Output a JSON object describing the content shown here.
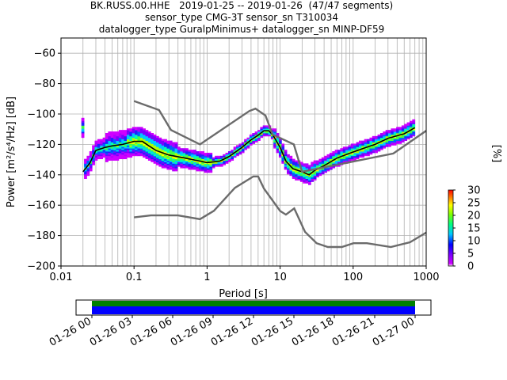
{
  "title": {
    "line1": "BK.RUSS.00.HHE   2019-01-25 -- 2019-01-26  (47/47 segments)",
    "line2": "sensor_type CMG-3T sensor_sn T310034",
    "line3": "datalogger_type GuralpMinimus+ datalogger_sn MINP-DF59"
  },
  "chart_data": {
    "type": "heatmap",
    "xlabel": "Period [s]",
    "ylabel": "Power [m²/s⁴/Hz] [dB]",
    "xscale": "log",
    "xlim": [
      0.01,
      1000
    ],
    "ylim": [
      -200,
      -50
    ],
    "xticks": [
      {
        "v": 0.01,
        "label": "0.01"
      },
      {
        "v": 0.1,
        "label": "0.1"
      },
      {
        "v": 1,
        "label": "1"
      },
      {
        "v": 10,
        "label": "10"
      },
      {
        "v": 100,
        "label": "100"
      },
      {
        "v": 1000,
        "label": "1000"
      }
    ],
    "yticks": [
      {
        "v": -60,
        "label": "−60"
      },
      {
        "v": -80,
        "label": "−80"
      },
      {
        "v": -100,
        "label": "−100"
      },
      {
        "v": -120,
        "label": "−120"
      },
      {
        "v": -140,
        "label": "−140"
      },
      {
        "v": -160,
        "label": "−160"
      },
      {
        "v": -180,
        "label": "−180"
      },
      {
        "v": -200,
        "label": "−200"
      }
    ],
    "grid": true,
    "colorbar": {
      "label": "[%]",
      "ticks": [
        {
          "v": 0,
          "label": "0"
        },
        {
          "v": 5,
          "label": "5"
        },
        {
          "v": 10,
          "label": "10"
        },
        {
          "v": 15,
          "label": "15"
        },
        {
          "v": 20,
          "label": "20"
        },
        {
          "v": 25,
          "label": "25"
        },
        {
          "v": 30,
          "label": "30"
        }
      ],
      "range": [
        0,
        30
      ]
    },
    "series": [
      {
        "kind": "mode",
        "points": [
          [
            0.02,
            -138
          ],
          [
            0.025,
            -132
          ],
          [
            0.03,
            -124
          ],
          [
            0.04,
            -122
          ],
          [
            0.05,
            -121
          ],
          [
            0.07,
            -120
          ],
          [
            0.1,
            -118
          ],
          [
            0.13,
            -118
          ],
          [
            0.16,
            -121
          ],
          [
            0.2,
            -124
          ],
          [
            0.3,
            -127
          ],
          [
            0.5,
            -129
          ],
          [
            0.8,
            -131
          ],
          [
            1.0,
            -132
          ],
          [
            1.5,
            -131
          ],
          [
            2,
            -128
          ],
          [
            3,
            -122
          ],
          [
            4,
            -117
          ],
          [
            5,
            -114
          ],
          [
            6,
            -111
          ],
          [
            7,
            -111
          ],
          [
            8,
            -114
          ],
          [
            10,
            -122
          ],
          [
            12,
            -131
          ],
          [
            15,
            -136
          ],
          [
            20,
            -138
          ],
          [
            25,
            -140
          ],
          [
            30,
            -137
          ],
          [
            40,
            -134
          ],
          [
            60,
            -129
          ],
          [
            100,
            -125
          ],
          [
            150,
            -122
          ],
          [
            200,
            -120
          ],
          [
            300,
            -116
          ],
          [
            500,
            -113
          ],
          [
            700,
            -109
          ]
        ]
      },
      {
        "kind": "new_high_noise_model",
        "points": [
          [
            0.1,
            -91.5
          ],
          [
            0.22,
            -97.4
          ],
          [
            0.32,
            -110.5
          ],
          [
            0.8,
            -120
          ],
          [
            3.8,
            -98
          ],
          [
            4.6,
            -96.5
          ],
          [
            6.3,
            -101
          ],
          [
            7.9,
            -113.5
          ],
          [
            15.4,
            -120
          ],
          [
            20,
            -138
          ],
          [
            354.8,
            -126
          ],
          [
            1000,
            -111
          ]
        ]
      },
      {
        "kind": "new_low_noise_model",
        "points": [
          [
            0.1,
            -168
          ],
          [
            0.17,
            -166.7
          ],
          [
            0.4,
            -166.7
          ],
          [
            0.8,
            -169.2
          ],
          [
            1.24,
            -163.7
          ],
          [
            2.4,
            -148.6
          ],
          [
            4.3,
            -141.1
          ],
          [
            5,
            -141.1
          ],
          [
            6,
            -149
          ],
          [
            10,
            -163.8
          ],
          [
            12,
            -166.2
          ],
          [
            15.6,
            -162.1
          ],
          [
            21.9,
            -177.5
          ],
          [
            31.6,
            -185
          ],
          [
            45,
            -187.5
          ],
          [
            70,
            -187.5
          ],
          [
            101,
            -185
          ],
          [
            154,
            -185
          ],
          [
            328,
            -187.5
          ],
          [
            600,
            -184.4
          ],
          [
            1000,
            -178
          ]
        ]
      }
    ]
  },
  "timeline": {
    "ticks": [
      "01-26 00",
      "01-26 03",
      "01-26 06",
      "01-26 09",
      "01-26 12",
      "01-26 15",
      "01-26 18",
      "01-26 21",
      "01-27 00"
    ],
    "bars": [
      {
        "name": "data",
        "color": "#008000"
      },
      {
        "name": "used",
        "color": "#0000ff"
      }
    ]
  }
}
